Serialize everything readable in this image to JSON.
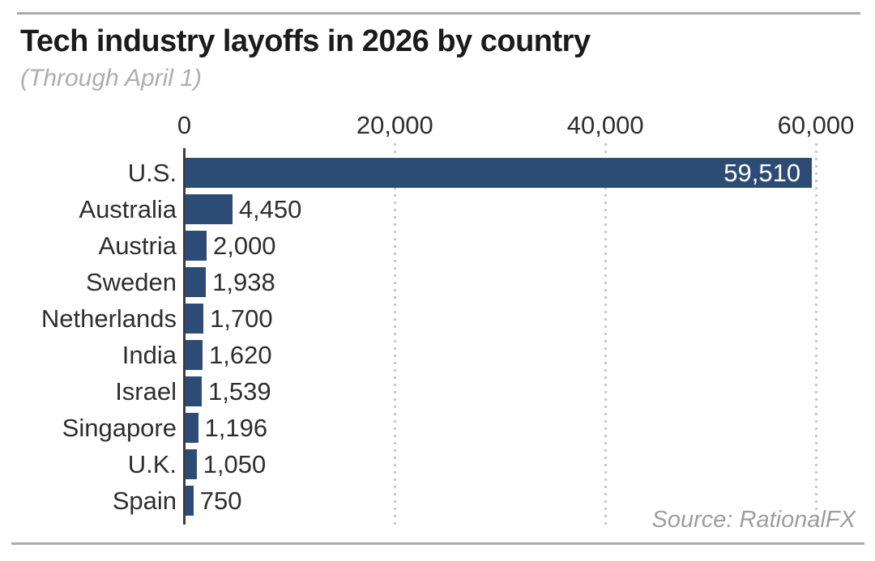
{
  "page": {
    "title": "Tech industry layoffs in 2026 by country",
    "subtitle": "(Through April 1)",
    "source": "Source: RationalFX"
  },
  "colors": {
    "bar": "#2c4c76",
    "bar_label_inside": "#ffffff",
    "text": "#2e2e2e",
    "title": "#1b1b1b",
    "subtitle": "#aeaeae",
    "source": "#9e9e9e",
    "gridline": "#c9c9c9",
    "axis": "#3d3d3d",
    "rule": "#ababab"
  },
  "chart_data": {
    "type": "bar",
    "orientation": "horizontal",
    "title": "Tech industry layoffs in 2026 by country",
    "subtitle": "(Through April 1)",
    "source": "Source: RationalFX",
    "categories": [
      "U.S.",
      "Australia",
      "Austria",
      "Sweden",
      "Netherlands",
      "India",
      "Israel",
      "Singapore",
      "U.K.",
      "Spain"
    ],
    "values": [
      59510,
      4450,
      2000,
      1938,
      1700,
      1620,
      1539,
      1196,
      1050,
      750
    ],
    "value_labels": [
      "59,510",
      "4,450",
      "2,000",
      "1,938",
      "1,700",
      "1,620",
      "1,539",
      "1,196",
      "1,050",
      "750"
    ],
    "xlim": [
      0,
      60000
    ],
    "x_ticks": [
      0,
      20000,
      40000,
      60000
    ],
    "x_tick_labels": [
      "0",
      "20,000",
      "40,000",
      "60,000"
    ],
    "grid": "vertical-dotted",
    "legend": "none",
    "value_label_placement": "outside-right, inside-right for largest bar"
  }
}
